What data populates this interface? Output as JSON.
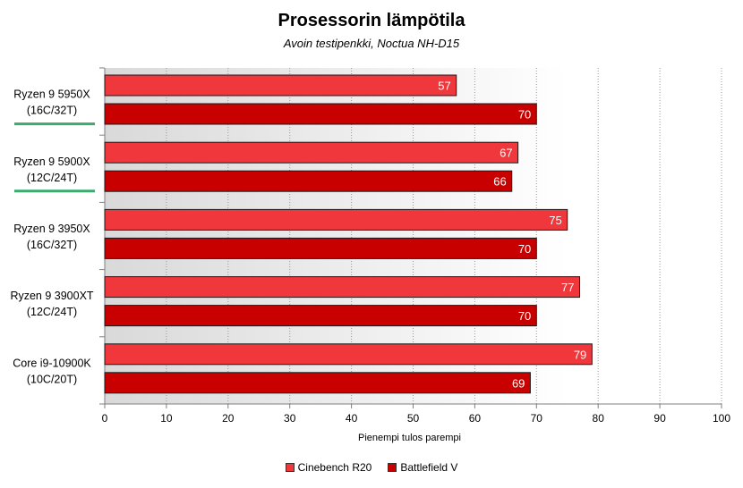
{
  "title": "Prosessorin lämpötila",
  "subtitle": "Avoin testipenkki, Noctua NH-D15",
  "chart_data": {
    "type": "bar",
    "orientation": "horizontal",
    "title": "Prosessorin lämpötila",
    "subtitle": "Avoin testipenkki, Noctua NH-D15",
    "xlabel": "Pienempi tulos parempi",
    "ylabel": "",
    "xlim": [
      0,
      100
    ],
    "ticks": [
      0,
      10,
      20,
      30,
      40,
      50,
      60,
      70,
      80,
      90,
      100
    ],
    "grid": true,
    "legend_position": "bottom",
    "categories": [
      {
        "line1": "Ryzen 9 5950X",
        "line2": "(16C/32T)",
        "highlight": true
      },
      {
        "line1": "Ryzen 9 5900X",
        "line2": "(12C/24T)",
        "highlight": true
      },
      {
        "line1": "Ryzen 9 3950X",
        "line2": "(16C/32T)",
        "highlight": false
      },
      {
        "line1": "Ryzen 9 3900XT",
        "line2": "(12C/24T)",
        "highlight": false
      },
      {
        "line1": "Core i9-10900K",
        "line2": "(10C/20T)",
        "highlight": false
      }
    ],
    "series": [
      {
        "name": "Cinebench R20",
        "color": "#f0373c",
        "values": [
          57,
          67,
          75,
          77,
          79
        ]
      },
      {
        "name": "Battlefield V",
        "color": "#c80000",
        "values": [
          70,
          66,
          70,
          70,
          69
        ]
      }
    ],
    "highlight_color": "#3aaa6e"
  }
}
